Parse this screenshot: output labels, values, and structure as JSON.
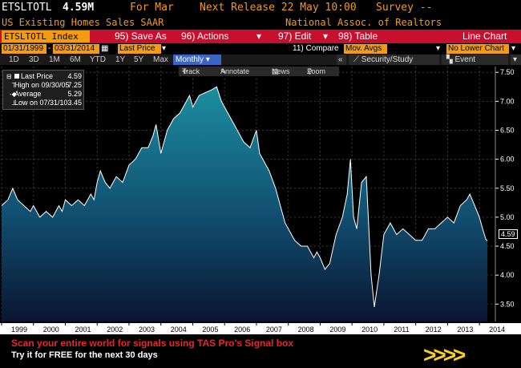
{
  "header": {
    "ticker": "ETSLTOTL",
    "value": "4.59M",
    "for_label": "For Mar",
    "release_label": "Next Release 22 May 10:00",
    "survey_label": "Survey --",
    "description": "US Existing Homes Sales SAAR",
    "source": "National Assoc. of Realtors"
  },
  "toolbar": {
    "ticker_field": "ETSLTOTL Index",
    "save_as": "95) Save As",
    "actions": "96) Actions",
    "edit": "97) Edit",
    "table": "98) Table",
    "chart_type": "Line Chart"
  },
  "toolbar2": {
    "start_date": "01/31/1999",
    "end_date": "03/31/2014",
    "price_field": "Last Price",
    "compare": "11) Compare",
    "mov_avgs": "Mov. Avgs",
    "lower_chart": "No Lower Chart"
  },
  "periods": [
    "1D",
    "3D",
    "1M",
    "6M",
    "YTD",
    "1Y",
    "5Y",
    "Max"
  ],
  "frequency": "Monthly",
  "frequency_arrow": "▾",
  "security_study": "Security/Study",
  "event": "Event",
  "subtoolbar": {
    "track": "Track",
    "annotate": "Annotate",
    "news": "News",
    "zoom": "Zoom"
  },
  "legend": {
    "last_label": "Last Price",
    "last_value": "4.59",
    "high_label": "High on 09/30/05",
    "high_value": "7.25",
    "avg_label": "Average",
    "avg_value": "5.29",
    "low_label": "Low on 07/31/10",
    "low_value": "3.45"
  },
  "current_value_label": "4.59",
  "footer": {
    "line1": "Scan your entire world for signals using TAS Pro's Signal box",
    "line2": "Try it for FREE for the next 30 days",
    "arrows": ">>>>"
  },
  "colors": {
    "accent_orange": "#f39c12",
    "toolbar_red": "#c8102e",
    "area_top": "#1c8ea0",
    "area_bottom": "#0a1530"
  },
  "chart_data": {
    "type": "area",
    "title": "",
    "xlabel": "",
    "ylabel": "",
    "x_ticks": [
      "1999",
      "2000",
      "2001",
      "2002",
      "2003",
      "2004",
      "2005",
      "2006",
      "2007",
      "2008",
      "2009",
      "2010",
      "2011",
      "2012",
      "2013",
      "2014"
    ],
    "y_ticks": [
      "3.50",
      "4.00",
      "4.50",
      "5.00",
      "5.50",
      "6.00",
      "6.50",
      "7.00",
      "7.50"
    ],
    "ylim": [
      3.2,
      7.6
    ],
    "xlim": [
      1999.0,
      2014.5
    ],
    "grid": true,
    "series": [
      {
        "points": [
          [
            1999.0,
            5.2
          ],
          [
            1999.1,
            5.25
          ],
          [
            1999.2,
            5.3
          ],
          [
            1999.35,
            5.5
          ],
          [
            1999.5,
            5.3
          ],
          [
            1999.7,
            5.2
          ],
          [
            1999.9,
            5.1
          ],
          [
            2000.0,
            5.2
          ],
          [
            2000.2,
            5.0
          ],
          [
            2000.4,
            5.1
          ],
          [
            2000.6,
            5.0
          ],
          [
            2000.8,
            5.2
          ],
          [
            2000.9,
            5.1
          ],
          [
            2001.0,
            5.3
          ],
          [
            2001.2,
            5.2
          ],
          [
            2001.4,
            5.3
          ],
          [
            2001.6,
            5.2
          ],
          [
            2001.8,
            5.4
          ],
          [
            2001.9,
            5.3
          ],
          [
            2002.0,
            5.6
          ],
          [
            2002.1,
            5.8
          ],
          [
            2002.25,
            5.6
          ],
          [
            2002.4,
            5.5
          ],
          [
            2002.6,
            5.7
          ],
          [
            2002.8,
            5.6
          ],
          [
            2003.0,
            5.9
          ],
          [
            2003.2,
            6.0
          ],
          [
            2003.4,
            6.2
          ],
          [
            2003.6,
            6.2
          ],
          [
            2003.75,
            6.4
          ],
          [
            2003.85,
            6.6
          ],
          [
            2004.0,
            6.1
          ],
          [
            2004.2,
            6.5
          ],
          [
            2004.4,
            6.7
          ],
          [
            2004.6,
            6.8
          ],
          [
            2004.8,
            7.0
          ],
          [
            2004.9,
            7.1
          ],
          [
            2005.0,
            6.9
          ],
          [
            2005.2,
            7.1
          ],
          [
            2005.4,
            7.15
          ],
          [
            2005.6,
            7.2
          ],
          [
            2005.75,
            7.25
          ],
          [
            2005.9,
            7.0
          ],
          [
            2006.0,
            6.9
          ],
          [
            2006.2,
            6.7
          ],
          [
            2006.4,
            6.5
          ],
          [
            2006.6,
            6.3
          ],
          [
            2006.8,
            6.2
          ],
          [
            2007.0,
            6.5
          ],
          [
            2007.1,
            6.1
          ],
          [
            2007.2,
            6.0
          ],
          [
            2007.4,
            5.8
          ],
          [
            2007.6,
            5.5
          ],
          [
            2007.8,
            5.1
          ],
          [
            2007.9,
            4.9
          ],
          [
            2008.0,
            4.8
          ],
          [
            2008.2,
            4.6
          ],
          [
            2008.4,
            4.5
          ],
          [
            2008.6,
            4.5
          ],
          [
            2008.8,
            4.3
          ],
          [
            2008.9,
            4.4
          ],
          [
            2009.0,
            4.3
          ],
          [
            2009.15,
            4.1
          ],
          [
            2009.3,
            4.2
          ],
          [
            2009.5,
            4.7
          ],
          [
            2009.7,
            5.0
          ],
          [
            2009.85,
            5.4
          ],
          [
            2009.95,
            6.0
          ],
          [
            2010.05,
            5.0
          ],
          [
            2010.15,
            4.8
          ],
          [
            2010.3,
            5.6
          ],
          [
            2010.45,
            5.7
          ],
          [
            2010.6,
            4.0
          ],
          [
            2010.7,
            3.45
          ],
          [
            2010.85,
            4.0
          ],
          [
            2011.0,
            4.7
          ],
          [
            2011.2,
            4.9
          ],
          [
            2011.4,
            4.7
          ],
          [
            2011.6,
            4.8
          ],
          [
            2011.8,
            4.7
          ],
          [
            2012.0,
            4.6
          ],
          [
            2012.2,
            4.6
          ],
          [
            2012.4,
            4.8
          ],
          [
            2012.6,
            4.8
          ],
          [
            2012.8,
            4.9
          ],
          [
            2013.0,
            5.0
          ],
          [
            2013.2,
            4.9
          ],
          [
            2013.4,
            5.2
          ],
          [
            2013.6,
            5.3
          ],
          [
            2013.7,
            5.4
          ],
          [
            2013.85,
            5.2
          ],
          [
            2014.0,
            5.0
          ],
          [
            2014.1,
            4.8
          ],
          [
            2014.2,
            4.62
          ],
          [
            2014.25,
            4.59
          ]
        ]
      }
    ]
  }
}
